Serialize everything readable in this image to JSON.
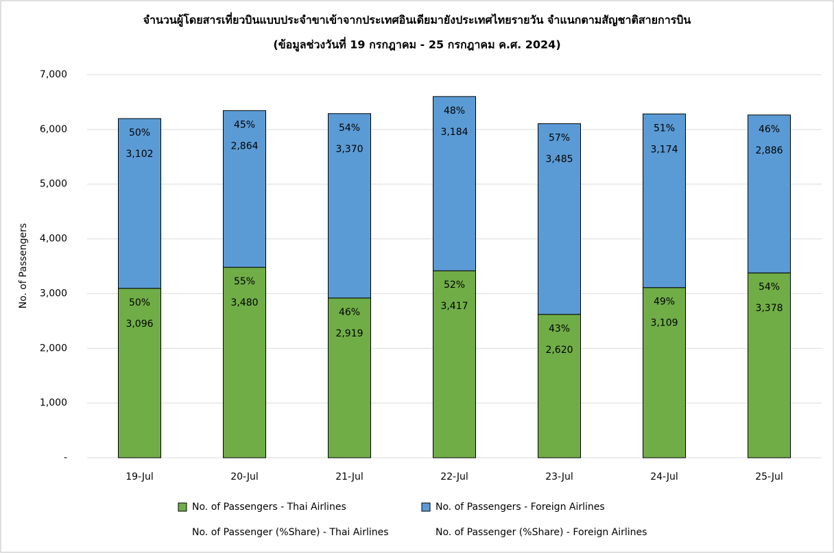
{
  "chart_data": {
    "type": "stacked-bar",
    "title": "จำนวนผู้โดยสารเที่ยวบินแบบประจำขาเข้าจากประเทศอินเดียมายังประเทศไทยรายวัน  จำแนกตามสัญชาติสายการบิน",
    "subtitle": "(ข้อมูลช่วงวันที่ 19 กรกฎาคม - 25 กรกฎาคม ค.ศ. 2024)",
    "y_label": "No. of Passengers",
    "categories": [
      "19-Jul",
      "20-Jul",
      "21-Jul",
      "22-Jul",
      "23-Jul",
      "24-Jul",
      "25-Jul"
    ],
    "series": [
      {
        "name": "No. of Passengers - Thai Airlines",
        "color": "#70ad47",
        "values": [
          3096,
          3480,
          2919,
          3417,
          2620,
          3109,
          3378
        ],
        "value_labels": [
          "3,096",
          "3,480",
          "2,919",
          "3,417",
          "2,620",
          "3,109",
          "3,378"
        ]
      },
      {
        "name": "No. of Passengers - Foreign Airlines",
        "color": "#5b9bd5",
        "values": [
          3102,
          2864,
          3370,
          3184,
          3485,
          3174,
          2886
        ],
        "value_labels": [
          "3,102",
          "2,864",
          "3,370",
          "3,184",
          "3,485",
          "3,174",
          "2,886"
        ]
      }
    ],
    "share_series": [
      {
        "name": "No. of Passenger (%Share) - Thai Airlines",
        "values": [
          50,
          55,
          46,
          52,
          43,
          49,
          54
        ],
        "value_labels": [
          "50%",
          "55%",
          "46%",
          "52%",
          "43%",
          "49%",
          "54%"
        ]
      },
      {
        "name": "No. of Passenger (%Share) - Foreign Airlines",
        "values": [
          50,
          45,
          54,
          48,
          57,
          51,
          46
        ],
        "value_labels": [
          "50%",
          "45%",
          "54%",
          "48%",
          "57%",
          "51%",
          "46%"
        ]
      }
    ],
    "ylim": [
      0,
      7000
    ],
    "yticks": [
      {
        "value": 0,
        "label": "-"
      },
      {
        "value": 1000,
        "label": "1,000"
      },
      {
        "value": 2000,
        "label": "2,000"
      },
      {
        "value": 3000,
        "label": "3,000"
      },
      {
        "value": 4000,
        "label": "4,000"
      },
      {
        "value": 5000,
        "label": "5,000"
      },
      {
        "value": 6000,
        "label": "6,000"
      },
      {
        "value": 7000,
        "label": "7,000"
      }
    ],
    "grid": true,
    "legend": "bottom"
  }
}
